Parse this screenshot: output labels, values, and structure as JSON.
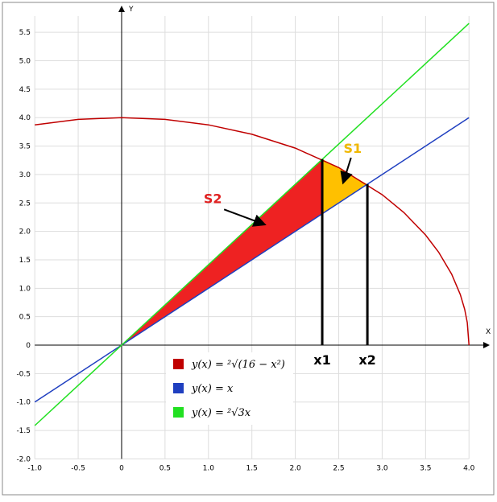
{
  "chart_data": {
    "type": "line",
    "x_label": "X",
    "y_label": "Y",
    "xlim": [
      -1.354,
      4.276
    ],
    "ylim": [
      -2.588,
      5.955
    ],
    "xticks": [
      {
        "value": -1,
        "label": "-1.0"
      },
      -0.5,
      0,
      0.5,
      {
        "value": 1,
        "label": "1.0"
      },
      1.5,
      {
        "value": 2,
        "label": "2.0"
      },
      2.5,
      {
        "value": 3,
        "label": "3.0"
      },
      3.5,
      {
        "value": 4,
        "label": "4.0"
      }
    ],
    "yticks": [
      {
        "value": -2,
        "label": "-2.0"
      },
      -1.5,
      {
        "value": -1,
        "label": "-1.0"
      },
      -0.5,
      0,
      0.5,
      {
        "value": 1,
        "label": "1.0"
      },
      1.5,
      {
        "value": 2,
        "label": "2.0"
      },
      2.5,
      {
        "value": 3,
        "label": "3.0"
      },
      3.5,
      {
        "value": 4,
        "label": "4.0"
      },
      4.5,
      {
        "value": 5,
        "label": "5.0"
      },
      5.5
    ],
    "grid": true,
    "series": [
      {
        "name": "y(x) = ²√(16 − x²)",
        "color": "#c00000",
        "x": [
          -1,
          -0.5,
          0,
          0.5,
          1,
          1.5,
          2,
          2.5,
          3,
          3.25,
          3.5,
          3.65,
          3.8,
          3.9,
          3.95,
          3.98,
          4
        ],
        "values": [
          3.873,
          3.969,
          4,
          3.969,
          3.873,
          3.708,
          3.464,
          3.122,
          2.646,
          2.332,
          1.936,
          1.636,
          1.249,
          0.889,
          0.631,
          0.399,
          0
        ]
      },
      {
        "name": "y(x) = x",
        "color": "#1f3fc0",
        "x": [
          -1,
          4
        ],
        "values": [
          -1,
          4
        ]
      },
      {
        "name": "y(x) = ²√3x",
        "color": "#22e022",
        "x": [
          -1,
          4
        ],
        "values": [
          -1.414,
          5.657
        ]
      }
    ],
    "regions": [
      {
        "label": "S2",
        "color": "#ee2222",
        "label_color": "#e02020",
        "x": [
          0,
          2.31,
          2.31
        ],
        "values": [
          0,
          3.27,
          2.31
        ]
      },
      {
        "label": "S1",
        "color": "#ffc000",
        "label_color": "#f0b800",
        "x": [
          2.31,
          2.5,
          2.7,
          2.83,
          2.31
        ],
        "values": [
          3.27,
          3.122,
          2.937,
          2.83,
          2.31
        ]
      }
    ],
    "vlines": [
      {
        "label": "x1",
        "x": [
          2.31,
          2.31
        ],
        "values": [
          0,
          3.27
        ]
      },
      {
        "label": "x2",
        "x": [
          2.83,
          2.83
        ],
        "values": [
          0,
          2.83
        ]
      }
    ]
  }
}
